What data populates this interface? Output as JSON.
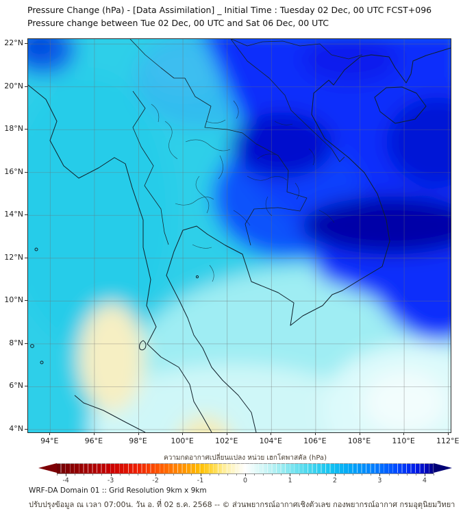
{
  "header": {
    "title_line1": "Pressure Change (hPa) - [Data Assimilation] _ Initial Time : Tuesday 02 Dec, 00 UTC FCST+096",
    "title_line2": "Pressure change between Tue 02 Dec, 00 UTC and Sat 06 Dec, 00 UTC"
  },
  "map": {
    "lat_tick_labels": [
      "22°N",
      "20°N",
      "18°N",
      "16°N",
      "14°N",
      "12°N",
      "10°N",
      "8°N",
      "6°N",
      "4°N"
    ],
    "lon_tick_labels": [
      "94°E",
      "96°E",
      "98°E",
      "100°E",
      "102°E",
      "104°E",
      "106°E",
      "108°E",
      "110°E",
      "112°E"
    ]
  },
  "colorbar": {
    "title": "ความกดอากาศเปลี่ยนแปลง หน่วย เฮกโตพาสคัล (hPa)",
    "tick_labels": [
      "-4",
      "-3",
      "-2",
      "-1",
      "0",
      "1",
      "2",
      "3",
      "4"
    ],
    "tick_values": [
      -4,
      -3,
      -2,
      -1,
      0,
      1,
      2,
      3,
      4
    ],
    "range_min": -4.2,
    "range_max": 4.2,
    "minor_tick_step": 0.2,
    "arrow_left_color": "#7d0005",
    "arrow_right_color": "#000074",
    "gradient_stops": [
      {
        "v": -4.2,
        "c": "#6e0005"
      },
      {
        "v": -3.6,
        "c": "#9c0000"
      },
      {
        "v": -3.0,
        "c": "#c80000"
      },
      {
        "v": -2.4,
        "c": "#ee2000"
      },
      {
        "v": -1.9,
        "c": "#ff5a00"
      },
      {
        "v": -1.4,
        "c": "#ff9100"
      },
      {
        "v": -1.0,
        "c": "#ffbe00"
      },
      {
        "v": -0.7,
        "c": "#ffdb4a"
      },
      {
        "v": -0.45,
        "c": "#ffef9e"
      },
      {
        "v": -0.2,
        "c": "#fdf8d8"
      },
      {
        "v": 0.0,
        "c": "#ffffff"
      },
      {
        "v": 0.2,
        "c": "#e8fbfa"
      },
      {
        "v": 0.5,
        "c": "#c5f4f5"
      },
      {
        "v": 0.9,
        "c": "#8fe9f0"
      },
      {
        "v": 1.4,
        "c": "#4bd8ee"
      },
      {
        "v": 1.9,
        "c": "#14c3f1"
      },
      {
        "v": 2.4,
        "c": "#00a2f8"
      },
      {
        "v": 2.9,
        "c": "#007bff"
      },
      {
        "v": 3.4,
        "c": "#0047ff"
      },
      {
        "v": 3.8,
        "c": "#001be8"
      },
      {
        "v": 4.05,
        "c": "#0007b8"
      },
      {
        "v": 4.2,
        "c": "#000080"
      }
    ]
  },
  "footer": {
    "line1": "WRF-DA Domain 01 :: Grid Resolution 9km x 9km",
    "line2": "ปรับปรุงข้อมูล ณ เวลา 07:00น. วัน อ. ที่ 02 ธ.ค. 2568 -- © ส่วนพยากรณ์อากาศเชิงตัวเลข กองพยากรณ์อากาศ กรมอุตุนิยมวิทยา"
  },
  "chart_data": {
    "type": "heatmap",
    "subtype": "filled-contour weather map",
    "variable": "surface pressure change (hPa) between Tue 02 Dec 00 UTC and Sat 06 Dec 00 UTC (FCST+096)",
    "model": "WRF-DA Domain 01, 9km x 9km grid",
    "lon_range_deg_e": [
      93.0,
      112.2
    ],
    "lat_range_deg_n": [
      3.9,
      22.2
    ],
    "colorbar_range_hpa": [
      -4,
      4
    ],
    "approx_field_readings_hpa": [
      {
        "location": "northern Vietnam / Gulf of Tonkin / southern China (NE quadrant)",
        "value": 2.5
      },
      {
        "location": "southern Laos - Cambodia - southern Vietnam band, 13-15N 104-112E (darkest)",
        "value": 3.5
      },
      {
        "location": "NE Thailand / central Laos, 17-19N 102-106E",
        "value": 3.0
      },
      {
        "location": "northern and central Thailand",
        "value": 1.5
      },
      {
        "location": "Myanmar coast / Andaman Sea",
        "value": 1.0
      },
      {
        "location": "Gulf of Thailand and southern Thailand",
        "value": 0.5
      },
      {
        "location": "south-east corner of domain, 6-8N 108-111E",
        "value": 0.2
      },
      {
        "location": "Andaman Sea spot, 8-10N 95-97E",
        "value": -0.3
      },
      {
        "location": "southern peninsula / north Malaysia, 4-6N 100-101E",
        "value": -0.3
      }
    ]
  }
}
